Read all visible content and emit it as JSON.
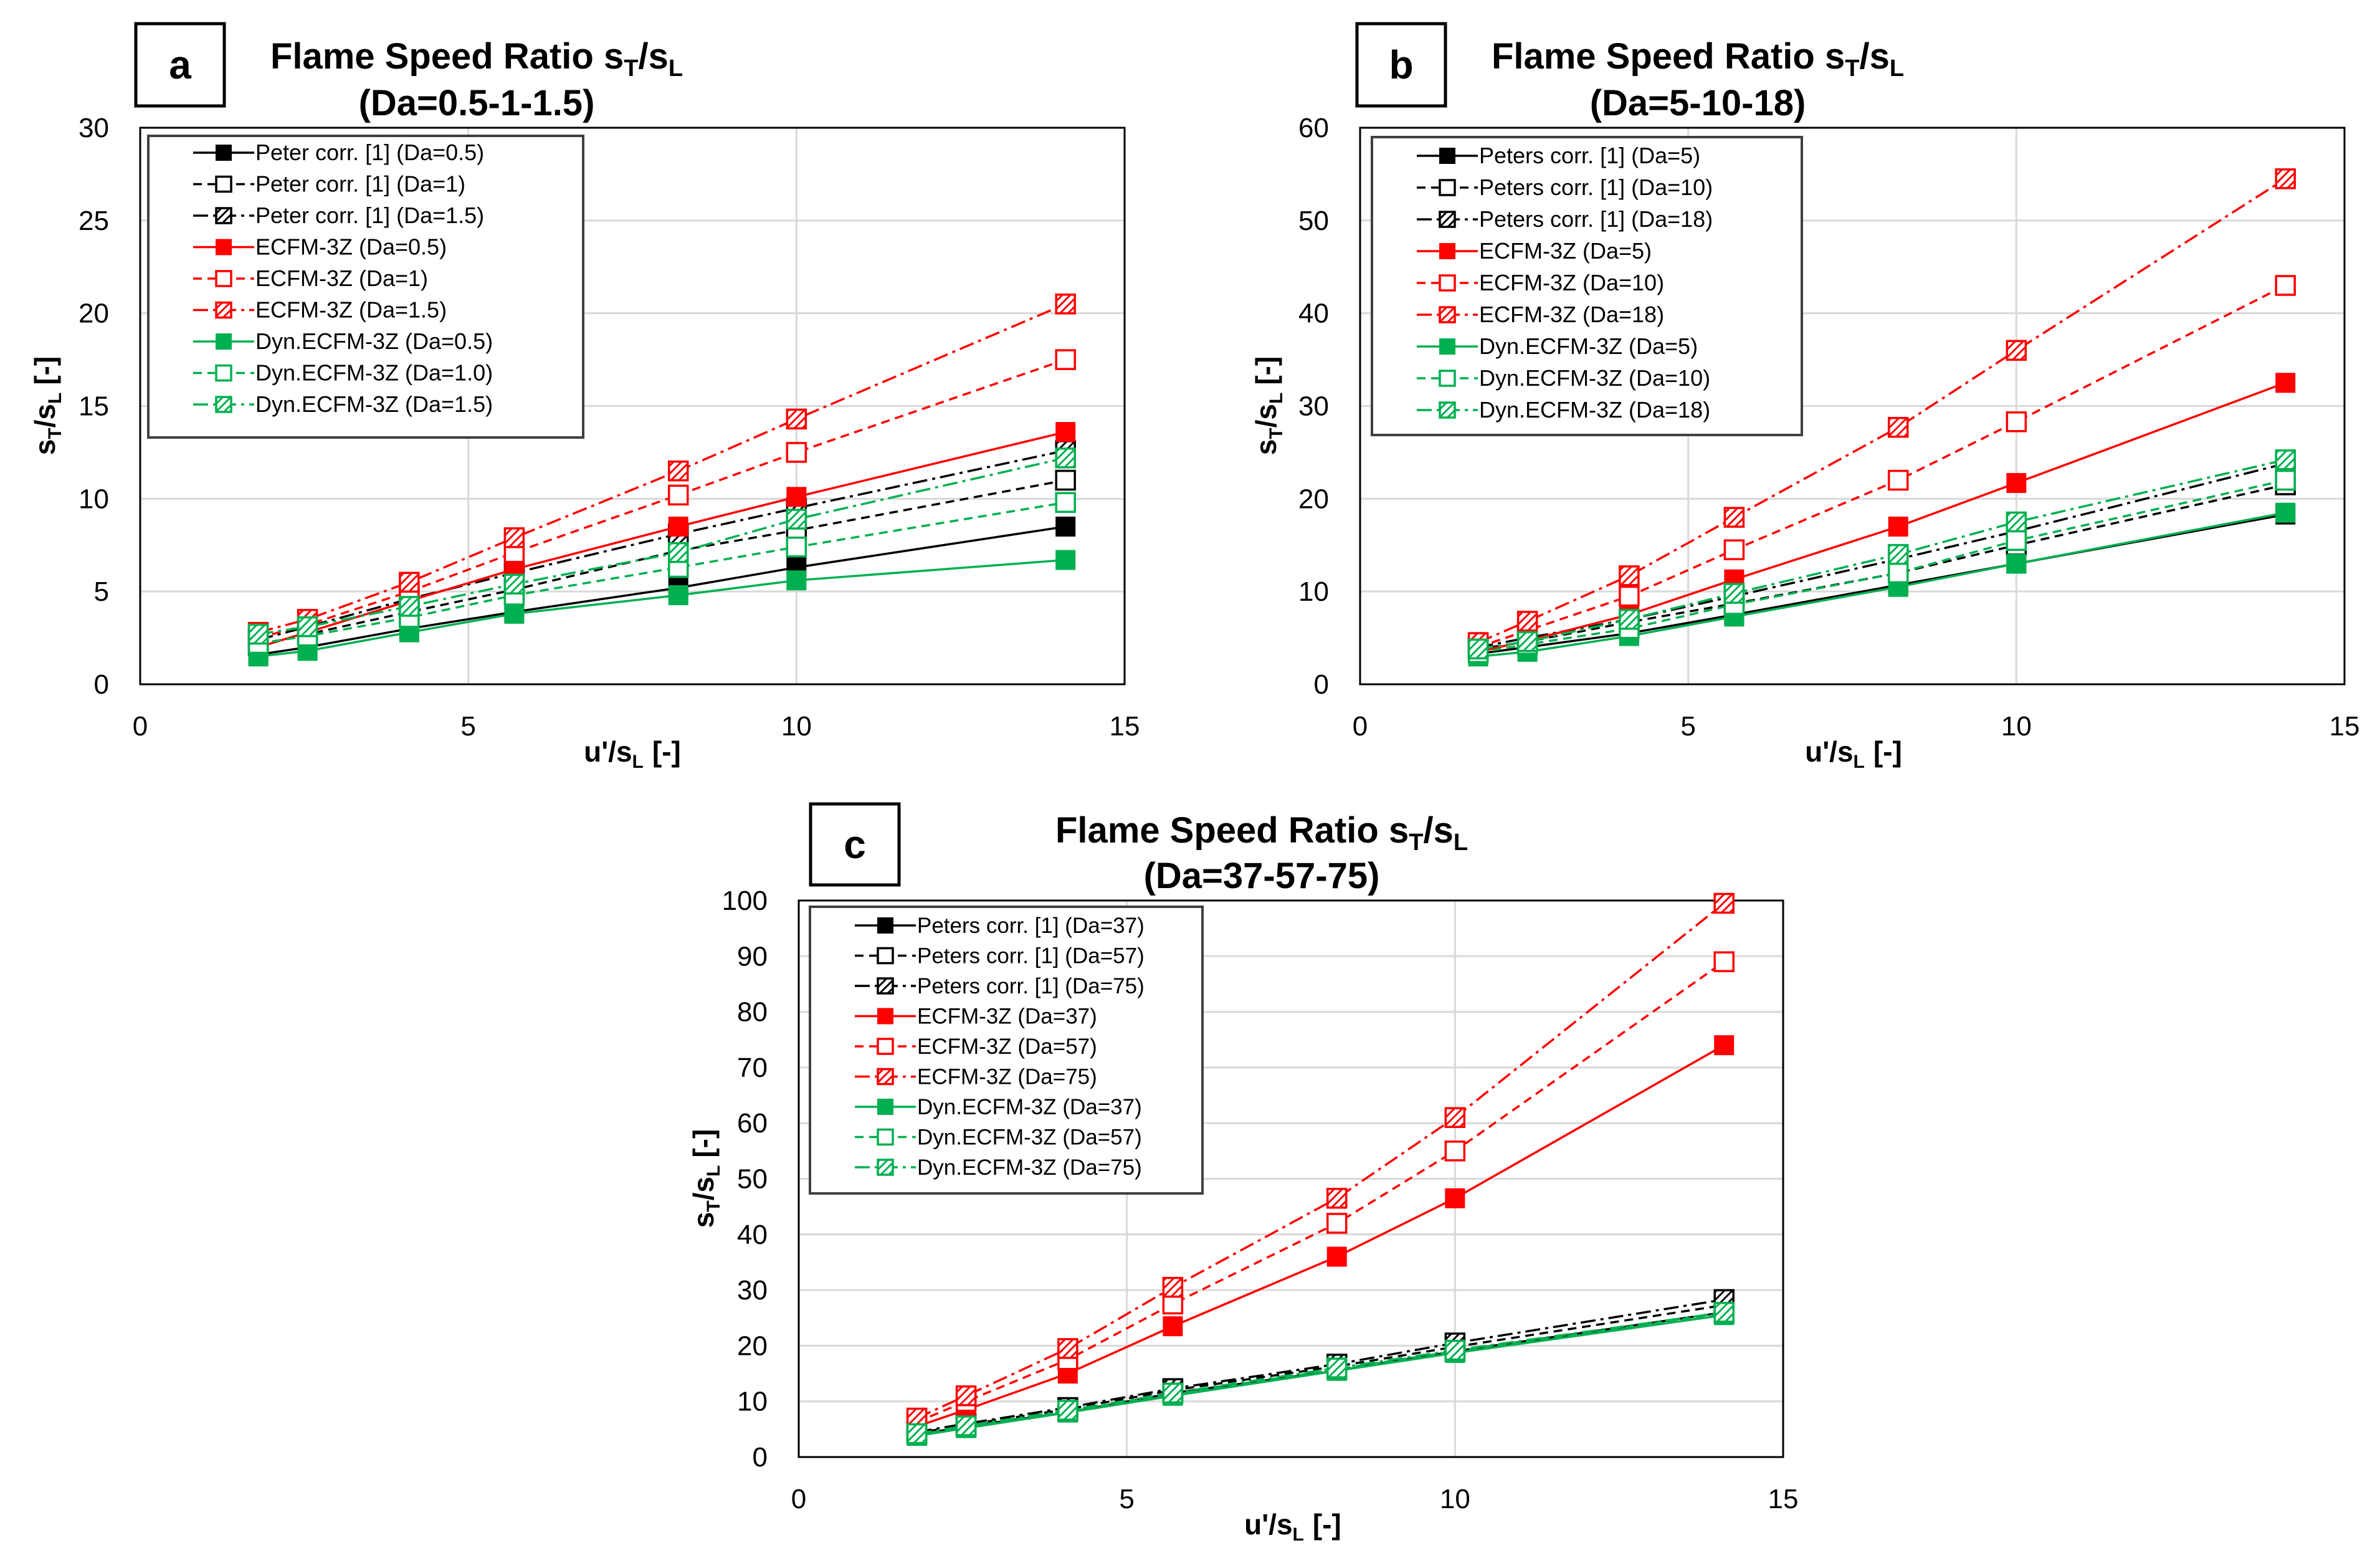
{
  "chart_data": [
    {
      "panel": "a",
      "type": "line",
      "title_main": "Flame Speed Ratio s",
      "title_sub1": "T",
      "title_slash": "/s",
      "title_sub2": "L",
      "subtitle": "(Da=0.5-1-1.5)",
      "xlabel": "u'/s",
      "xlabel_sub": "L",
      "xlabel_tail": "[-]",
      "ylabel": "s",
      "ylabel_sub1": "T",
      "ylabel_slash": "/s",
      "ylabel_sub2": "L",
      "ylabel_tail": "[-]",
      "xlim": [
        0,
        15
      ],
      "ylim": [
        0,
        30
      ],
      "xticks": [
        0,
        5,
        10,
        15
      ],
      "yticks": [
        0,
        5,
        10,
        15,
        20,
        25,
        30
      ],
      "grid": true,
      "legend_position": "top-left",
      "x": [
        1.8,
        2.55,
        4.1,
        5.7,
        8.2,
        10.0,
        14.1
      ],
      "series": [
        {
          "name": "Peter corr. [1] (Da=0.5)",
          "color": "#000000",
          "dash": "solid",
          "marker": "filled",
          "values": [
            1.6,
            2.0,
            3.0,
            3.9,
            5.2,
            6.3,
            8.5
          ]
        },
        {
          "name": "Peter corr. [1] (Da=1)",
          "color": "#000000",
          "dash": "dashed",
          "marker": "open",
          "values": [
            2.1,
            2.7,
            3.9,
            5.1,
            7.2,
            8.3,
            11.0
          ]
        },
        {
          "name": "Peter corr. [1] (Da=1.5)",
          "color": "#000000",
          "dash": "dashdot",
          "marker": "hatched",
          "values": [
            2.4,
            3.1,
            4.6,
            6.0,
            8.1,
            9.5,
            12.6
          ]
        },
        {
          "name": "ECFM-3Z (Da=0.5)",
          "color": "#ff0000",
          "dash": "solid",
          "marker": "filled",
          "values": [
            2.0,
            2.8,
            4.5,
            6.2,
            8.5,
            10.1,
            13.6
          ]
        },
        {
          "name": "ECFM-3Z (Da=1)",
          "color": "#ff0000",
          "dash": "dashed",
          "marker": "open",
          "values": [
            2.5,
            3.2,
            5.0,
            7.1,
            10.2,
            12.5,
            17.5
          ]
        },
        {
          "name": "ECFM-3Z (Da=1.5)",
          "color": "#ff0000",
          "dash": "dashdot",
          "marker": "hatched",
          "values": [
            2.8,
            3.5,
            5.5,
            7.9,
            11.5,
            14.3,
            20.5
          ]
        },
        {
          "name": "Dyn.ECFM-3Z (Da=0.5)",
          "color": "#00b050",
          "dash": "solid",
          "marker": "filled",
          "values": [
            1.5,
            1.8,
            2.8,
            3.8,
            4.8,
            5.6,
            6.7
          ]
        },
        {
          "name": "Dyn.ECFM-3Z (Da=1.0)",
          "color": "#00b050",
          "dash": "dashed",
          "marker": "open",
          "values": [
            2.2,
            2.6,
            3.6,
            4.8,
            6.3,
            7.4,
            9.8
          ]
        },
        {
          "name": "Dyn.ECFM-3Z (Da=1.5)",
          "color": "#00b050",
          "dash": "dashdot",
          "marker": "hatched",
          "values": [
            2.7,
            3.1,
            4.2,
            5.4,
            7.1,
            8.9,
            12.2
          ]
        }
      ]
    },
    {
      "panel": "b",
      "type": "line",
      "title_main": "Flame Speed Ratio s",
      "title_sub1": "T",
      "title_slash": "/s",
      "title_sub2": "L",
      "subtitle": "(Da=5-10-18)",
      "xlabel": "u'/s",
      "xlabel_sub": "L",
      "xlabel_tail": "[-]",
      "ylabel": "s",
      "ylabel_sub1": "T",
      "ylabel_slash": "/s",
      "ylabel_sub2": "L",
      "ylabel_tail": "[-]",
      "xlim": [
        0,
        15
      ],
      "ylim": [
        0,
        60
      ],
      "xticks": [
        0,
        5,
        10,
        15
      ],
      "yticks": [
        0,
        10,
        20,
        30,
        40,
        50,
        60
      ],
      "grid": true,
      "legend_position": "top-left",
      "x": [
        1.8,
        2.55,
        4.1,
        5.7,
        8.2,
        10.0,
        14.1
      ],
      "series": [
        {
          "name": "Peters corr. [1] (Da=5)",
          "color": "#000000",
          "dash": "solid",
          "marker": "filled",
          "values": [
            3.3,
            4.0,
            5.5,
            7.5,
            10.7,
            13.0,
            18.3
          ]
        },
        {
          "name": "Peters corr. [1] (Da=10)",
          "color": "#000000",
          "dash": "dashed",
          "marker": "open",
          "values": [
            3.8,
            4.6,
            6.7,
            8.7,
            12.0,
            15.0,
            21.5
          ]
        },
        {
          "name": "Peters corr. [1] (Da=18)",
          "color": "#000000",
          "dash": "dashdot",
          "marker": "hatched",
          "values": [
            4.0,
            5.0,
            7.0,
            9.5,
            13.5,
            16.5,
            23.8
          ]
        },
        {
          "name": "ECFM-3Z (Da=5)",
          "color": "#ff0000",
          "dash": "solid",
          "marker": "filled",
          "values": [
            3.5,
            4.7,
            7.5,
            11.3,
            17.0,
            21.7,
            32.5
          ]
        },
        {
          "name": "ECFM-3Z (Da=10)",
          "color": "#ff0000",
          "dash": "dashed",
          "marker": "open",
          "values": [
            4.0,
            5.8,
            9.5,
            14.5,
            22.0,
            28.3,
            43.0
          ]
        },
        {
          "name": "ECFM-3Z (Da=18)",
          "color": "#ff0000",
          "dash": "dashdot",
          "marker": "hatched",
          "values": [
            4.5,
            6.8,
            11.7,
            18.0,
            27.7,
            36.0,
            54.5
          ]
        },
        {
          "name": "Dyn.ECFM-3Z (Da=5)",
          "color": "#00b050",
          "dash": "solid",
          "marker": "filled",
          "values": [
            3.0,
            3.5,
            5.2,
            7.3,
            10.5,
            13.0,
            18.5
          ]
        },
        {
          "name": "Dyn.ECFM-3Z (Da=10)",
          "color": "#00b050",
          "dash": "dashed",
          "marker": "open",
          "values": [
            3.4,
            4.3,
            6.0,
            8.6,
            12.0,
            15.5,
            22.0
          ]
        },
        {
          "name": "Dyn.ECFM-3Z (Da=18)",
          "color": "#00b050",
          "dash": "dashdot",
          "marker": "hatched",
          "values": [
            3.8,
            4.6,
            7.0,
            9.8,
            14.0,
            17.5,
            24.2
          ]
        }
      ]
    },
    {
      "panel": "c",
      "type": "line",
      "title_main": "Flame Speed Ratio s",
      "title_sub1": "T",
      "title_slash": "/s",
      "title_sub2": "L",
      "subtitle": "(Da=37-57-75)",
      "xlabel": "u'/s",
      "xlabel_sub": "L",
      "xlabel_tail": "[-]",
      "ylabel": "s",
      "ylabel_sub1": "T",
      "ylabel_slash": "/s",
      "ylabel_sub2": "L",
      "ylabel_tail": "[-]",
      "xlim": [
        0,
        15
      ],
      "ylim": [
        0,
        100
      ],
      "xticks": [
        0,
        5,
        10,
        15
      ],
      "yticks": [
        0,
        10,
        20,
        30,
        40,
        50,
        60,
        70,
        80,
        90,
        100
      ],
      "grid": true,
      "legend_position": "top-left",
      "x": [
        1.8,
        2.55,
        4.1,
        5.7,
        8.2,
        10.0,
        14.1
      ],
      "series": [
        {
          "name": "Peters corr. [1] (Da=37)",
          "color": "#000000",
          "dash": "solid",
          "marker": "filled",
          "values": [
            4.0,
            5.5,
            8.0,
            11.5,
            15.5,
            19.0,
            26.0
          ]
        },
        {
          "name": "Peters corr. [1] (Da=57)",
          "color": "#000000",
          "dash": "dashed",
          "marker": "open",
          "values": [
            4.3,
            5.8,
            8.6,
            12.0,
            16.3,
            19.8,
            27.3
          ]
        },
        {
          "name": "Peters corr. [1] (Da=75)",
          "color": "#000000",
          "dash": "dashdot",
          "marker": "hatched",
          "values": [
            4.5,
            6.0,
            8.9,
            12.3,
            16.7,
            20.5,
            28.3
          ]
        },
        {
          "name": "ECFM-3Z (Da=37)",
          "color": "#ff0000",
          "dash": "solid",
          "marker": "filled",
          "values": [
            5.5,
            8.5,
            15.0,
            23.5,
            36.0,
            46.5,
            74.0
          ]
        },
        {
          "name": "ECFM-3Z (Da=57)",
          "color": "#ff0000",
          "dash": "dashed",
          "marker": "open",
          "values": [
            6.3,
            10.0,
            17.5,
            27.5,
            42.0,
            55.0,
            89.0
          ]
        },
        {
          "name": "ECFM-3Z (Da=75)",
          "color": "#ff0000",
          "dash": "dashdot",
          "marker": "hatched",
          "values": [
            7.0,
            11.0,
            19.5,
            30.5,
            46.5,
            61.0,
            99.5
          ]
        },
        {
          "name": "Dyn.ECFM-3Z (Da=37)",
          "color": "#00b050",
          "dash": "solid",
          "marker": "filled",
          "values": [
            3.8,
            5.2,
            8.0,
            11.0,
            15.5,
            18.7,
            25.5
          ]
        },
        {
          "name": "Dyn.ECFM-3Z (Da=57)",
          "color": "#00b050",
          "dash": "dashed",
          "marker": "open",
          "values": [
            4.0,
            5.4,
            8.2,
            11.3,
            15.8,
            19.0,
            25.8
          ]
        },
        {
          "name": "Dyn.ECFM-3Z (Da=75)",
          "color": "#00b050",
          "dash": "dashdot",
          "marker": "hatched",
          "values": [
            4.2,
            5.6,
            8.4,
            11.5,
            16.0,
            19.2,
            26.0
          ]
        }
      ]
    }
  ]
}
